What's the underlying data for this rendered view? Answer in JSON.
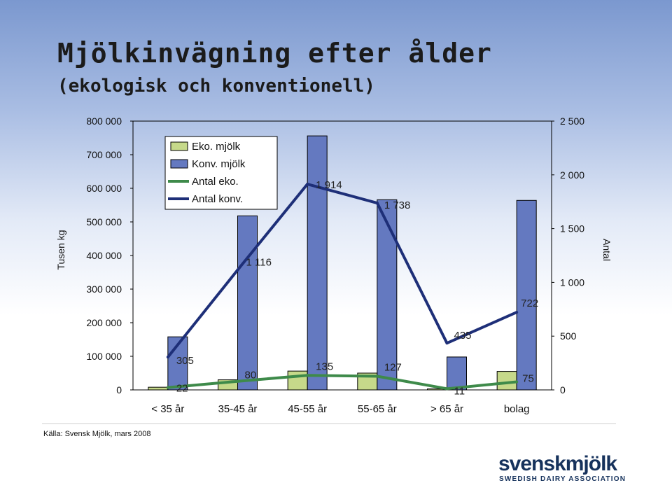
{
  "slide": {
    "title": "Mjölkinvägning efter ålder",
    "subtitle": "(ekologisk och konventionell)",
    "source": "Källa: Svensk Mjölk, mars 2008"
  },
  "logo": {
    "wordmark": "svenskmjölk",
    "tagline": "SWEDISH DAIRY ASSOCIATION"
  },
  "chart_data": {
    "type": "bar",
    "categories": [
      "< 35 år",
      "35-45 år",
      "45-55 år",
      "55-65 år",
      "> 65 år",
      "bolag"
    ],
    "ylabel": "Tusen kg",
    "y2label": "Antal",
    "ylim": [
      0,
      800000
    ],
    "y2lim": [
      0,
      2500
    ],
    "y_ticks": [
      0,
      100000,
      200000,
      300000,
      400000,
      500000,
      600000,
      700000,
      800000
    ],
    "y_tick_labels": [
      "0",
      "100 000",
      "200 000",
      "300 000",
      "400 000",
      "500 000",
      "600 000",
      "700 000",
      "800 000"
    ],
    "y2_ticks": [
      0,
      500,
      1000,
      1500,
      2000,
      2500
    ],
    "y2_tick_labels": [
      "0",
      "500",
      "1 000",
      "1 500",
      "2 000",
      "2 500"
    ],
    "legend_position": "top-left",
    "series": [
      {
        "name": "Eko. mjölk",
        "kind": "bar",
        "axis": "left",
        "color": "#c6d98a",
        "values": [
          8000,
          30000,
          56000,
          50000,
          3000,
          55000
        ]
      },
      {
        "name": "Konv. mjölk",
        "kind": "bar",
        "axis": "left",
        "color": "#6479c0",
        "values": [
          158000,
          518000,
          756000,
          566000,
          98000,
          564000
        ]
      },
      {
        "name": "Antal eko.",
        "kind": "line",
        "axis": "right",
        "color": "#3e8a4a",
        "values": [
          22,
          80,
          135,
          127,
          11,
          75
        ],
        "labels": [
          "22",
          "80",
          "135",
          "127",
          "11",
          "75"
        ]
      },
      {
        "name": "Antal konv.",
        "kind": "line",
        "axis": "right",
        "color": "#1e2f78",
        "values": [
          305,
          1116,
          1914,
          1738,
          435,
          722
        ],
        "labels": [
          "305",
          "1 116",
          "1 914",
          "1 738",
          "435",
          "722"
        ]
      }
    ]
  }
}
